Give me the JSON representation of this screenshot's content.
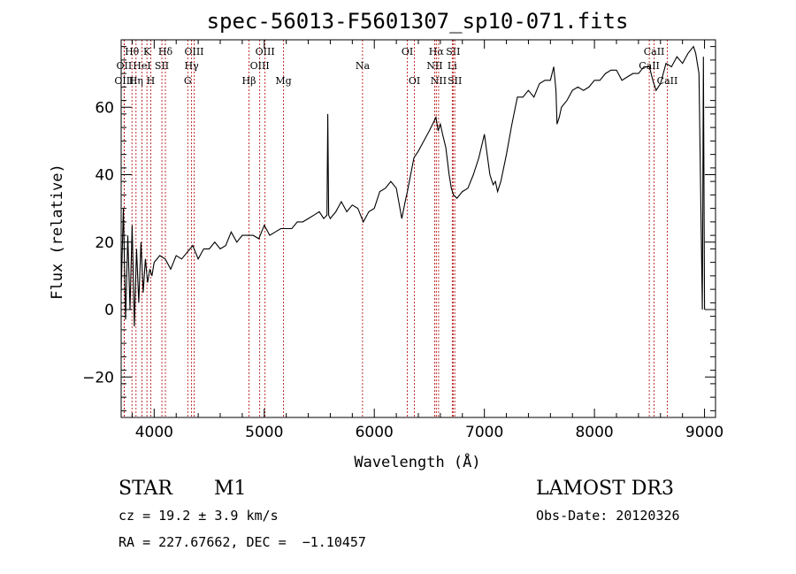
{
  "chart_data": {
    "type": "line",
    "title": "spec-56013-F5601307_sp10-071.fits",
    "xlabel": "Wavelength (Å)",
    "ylabel": "Flux (relative)",
    "xlim": [
      3700,
      9100
    ],
    "ylim": [
      -32,
      80
    ],
    "x_ticks": [
      4000,
      5000,
      6000,
      7000,
      8000,
      9000
    ],
    "y_ticks": [
      -20,
      0,
      20,
      40,
      60
    ],
    "grid": false,
    "series": [
      {
        "color": "#000000",
        "x": [
          3700,
          3720,
          3740,
          3760,
          3780,
          3800,
          3820,
          3840,
          3860,
          3880,
          3900,
          3920,
          3940,
          3960,
          3980,
          4000,
          4050,
          4100,
          4150,
          4200,
          4250,
          4300,
          4350,
          4400,
          4450,
          4500,
          4550,
          4600,
          4650,
          4700,
          4750,
          4800,
          4850,
          4900,
          4950,
          5000,
          5050,
          5100,
          5150,
          5200,
          5250,
          5300,
          5350,
          5400,
          5450,
          5500,
          5540,
          5570,
          5577,
          5585,
          5600,
          5650,
          5700,
          5750,
          5800,
          5850,
          5900,
          5950,
          6000,
          6050,
          6100,
          6150,
          6200,
          6250,
          6280,
          6300,
          6330,
          6360,
          6400,
          6450,
          6500,
          6530,
          6560,
          6580,
          6600,
          6620,
          6650,
          6680,
          6700,
          6720,
          6750,
          6800,
          6850,
          6900,
          6950,
          7000,
          7050,
          7080,
          7100,
          7120,
          7150,
          7200,
          7250,
          7300,
          7350,
          7400,
          7450,
          7500,
          7550,
          7600,
          7630,
          7650,
          7660,
          7680,
          7700,
          7750,
          7800,
          7850,
          7900,
          7950,
          8000,
          8050,
          8100,
          8150,
          8200,
          8250,
          8300,
          8350,
          8400,
          8450,
          8500,
          8530,
          8560,
          8600,
          8650,
          8700,
          8750,
          8800,
          8850,
          8900,
          8920,
          8950,
          8980,
          8990,
          9000
        ],
        "y": [
          5,
          30,
          -3,
          22,
          0,
          25,
          -5,
          18,
          2,
          20,
          5,
          15,
          8,
          12,
          10,
          14,
          16,
          15,
          12,
          16,
          15,
          17,
          19,
          15,
          18,
          18,
          20,
          18,
          19,
          23,
          20,
          22,
          22,
          22,
          21,
          25,
          22,
          23,
          24,
          24,
          24,
          26,
          26,
          27,
          28,
          29,
          27,
          28,
          58,
          28,
          27,
          29,
          32,
          29,
          31,
          30,
          26,
          29,
          30,
          35,
          36,
          38,
          36,
          27,
          32,
          35,
          40,
          45,
          47,
          50,
          53,
          55,
          57,
          53,
          55,
          52,
          48,
          40,
          36,
          34,
          33,
          35,
          36,
          40,
          45,
          52,
          40,
          37,
          38,
          35,
          38,
          46,
          55,
          63,
          63,
          65,
          63,
          67,
          68,
          68,
          72,
          65,
          55,
          57,
          60,
          62,
          65,
          66,
          65,
          66,
          68,
          68,
          70,
          71,
          71,
          68,
          69,
          70,
          70,
          72,
          72,
          68,
          65,
          67,
          73,
          72,
          75,
          73,
          76,
          78,
          76,
          70,
          0,
          75,
          0
        ]
      }
    ],
    "line_labels": [
      {
        "label": "Hθ",
        "row": 1,
        "lines": [
          3798
        ]
      },
      {
        "label": "OII",
        "row": 2,
        "lines": [
          3727
        ]
      },
      {
        "label": "OIII",
        "row": 3,
        "lines": [
          3727
        ]
      },
      {
        "label": "K",
        "row": 1,
        "lines": [
          3934
        ]
      },
      {
        "label": "HeI",
        "row": 2,
        "lines": [
          3889
        ]
      },
      {
        "label": "Hη",
        "row": 3,
        "lines": [
          3835
        ]
      },
      {
        "label": "SII",
        "row": 2,
        "lines": [
          4070
        ]
      },
      {
        "label": "H",
        "row": 3,
        "lines": [
          3969
        ]
      },
      {
        "label": "Hδ",
        "row": 1,
        "lines": [
          4102
        ]
      },
      {
        "label": "OIII",
        "row": 1,
        "lines": [
          4363
        ]
      },
      {
        "label": "Hγ",
        "row": 2,
        "lines": [
          4340
        ]
      },
      {
        "label": "G",
        "row": 3,
        "lines": [
          4305
        ]
      },
      {
        "label": "OIII",
        "row": 1,
        "lines": [
          5007
        ]
      },
      {
        "label": "OIII",
        "row": 2,
        "lines": [
          4959
        ]
      },
      {
        "label": "Hβ",
        "row": 3,
        "lines": [
          4861
        ]
      },
      {
        "label": "Mg",
        "row": 3,
        "lines": [
          5175
        ]
      },
      {
        "label": "Na",
        "row": 2,
        "lines": [
          5893
        ]
      },
      {
        "label": "OI",
        "row": 1,
        "lines": [
          6300
        ]
      },
      {
        "label": "OI",
        "row": 3,
        "lines": [
          6364
        ]
      },
      {
        "label": "Hα",
        "row": 1,
        "lines": [
          6563
        ]
      },
      {
        "label": "SII",
        "row": 1,
        "lines": [
          6716
        ]
      },
      {
        "label": "NII",
        "row": 2,
        "lines": [
          6548
        ]
      },
      {
        "label": "Li",
        "row": 2,
        "lines": [
          6708
        ]
      },
      {
        "label": "NII",
        "row": 3,
        "lines": [
          6584
        ]
      },
      {
        "label": "SII",
        "row": 3,
        "lines": [
          6731
        ]
      },
      {
        "label": "CaII",
        "row": 1,
        "lines": [
          8542
        ]
      },
      {
        "label": "CaII",
        "row": 2,
        "lines": [
          8498
        ]
      },
      {
        "label": "CaII",
        "row": 3,
        "lines": [
          8662
        ]
      }
    ]
  },
  "info": {
    "class": "STAR",
    "subclass": "M1",
    "survey": "LAMOST DR3",
    "cz": "cz = 19.2 ± 3.9 km/s",
    "obs_date": "Obs-Date: 20120326",
    "coords": "RA = 227.67662, DEC =  −1.10457"
  },
  "colors": {
    "line_marker": "#b00000",
    "spectrum": "#000000"
  }
}
